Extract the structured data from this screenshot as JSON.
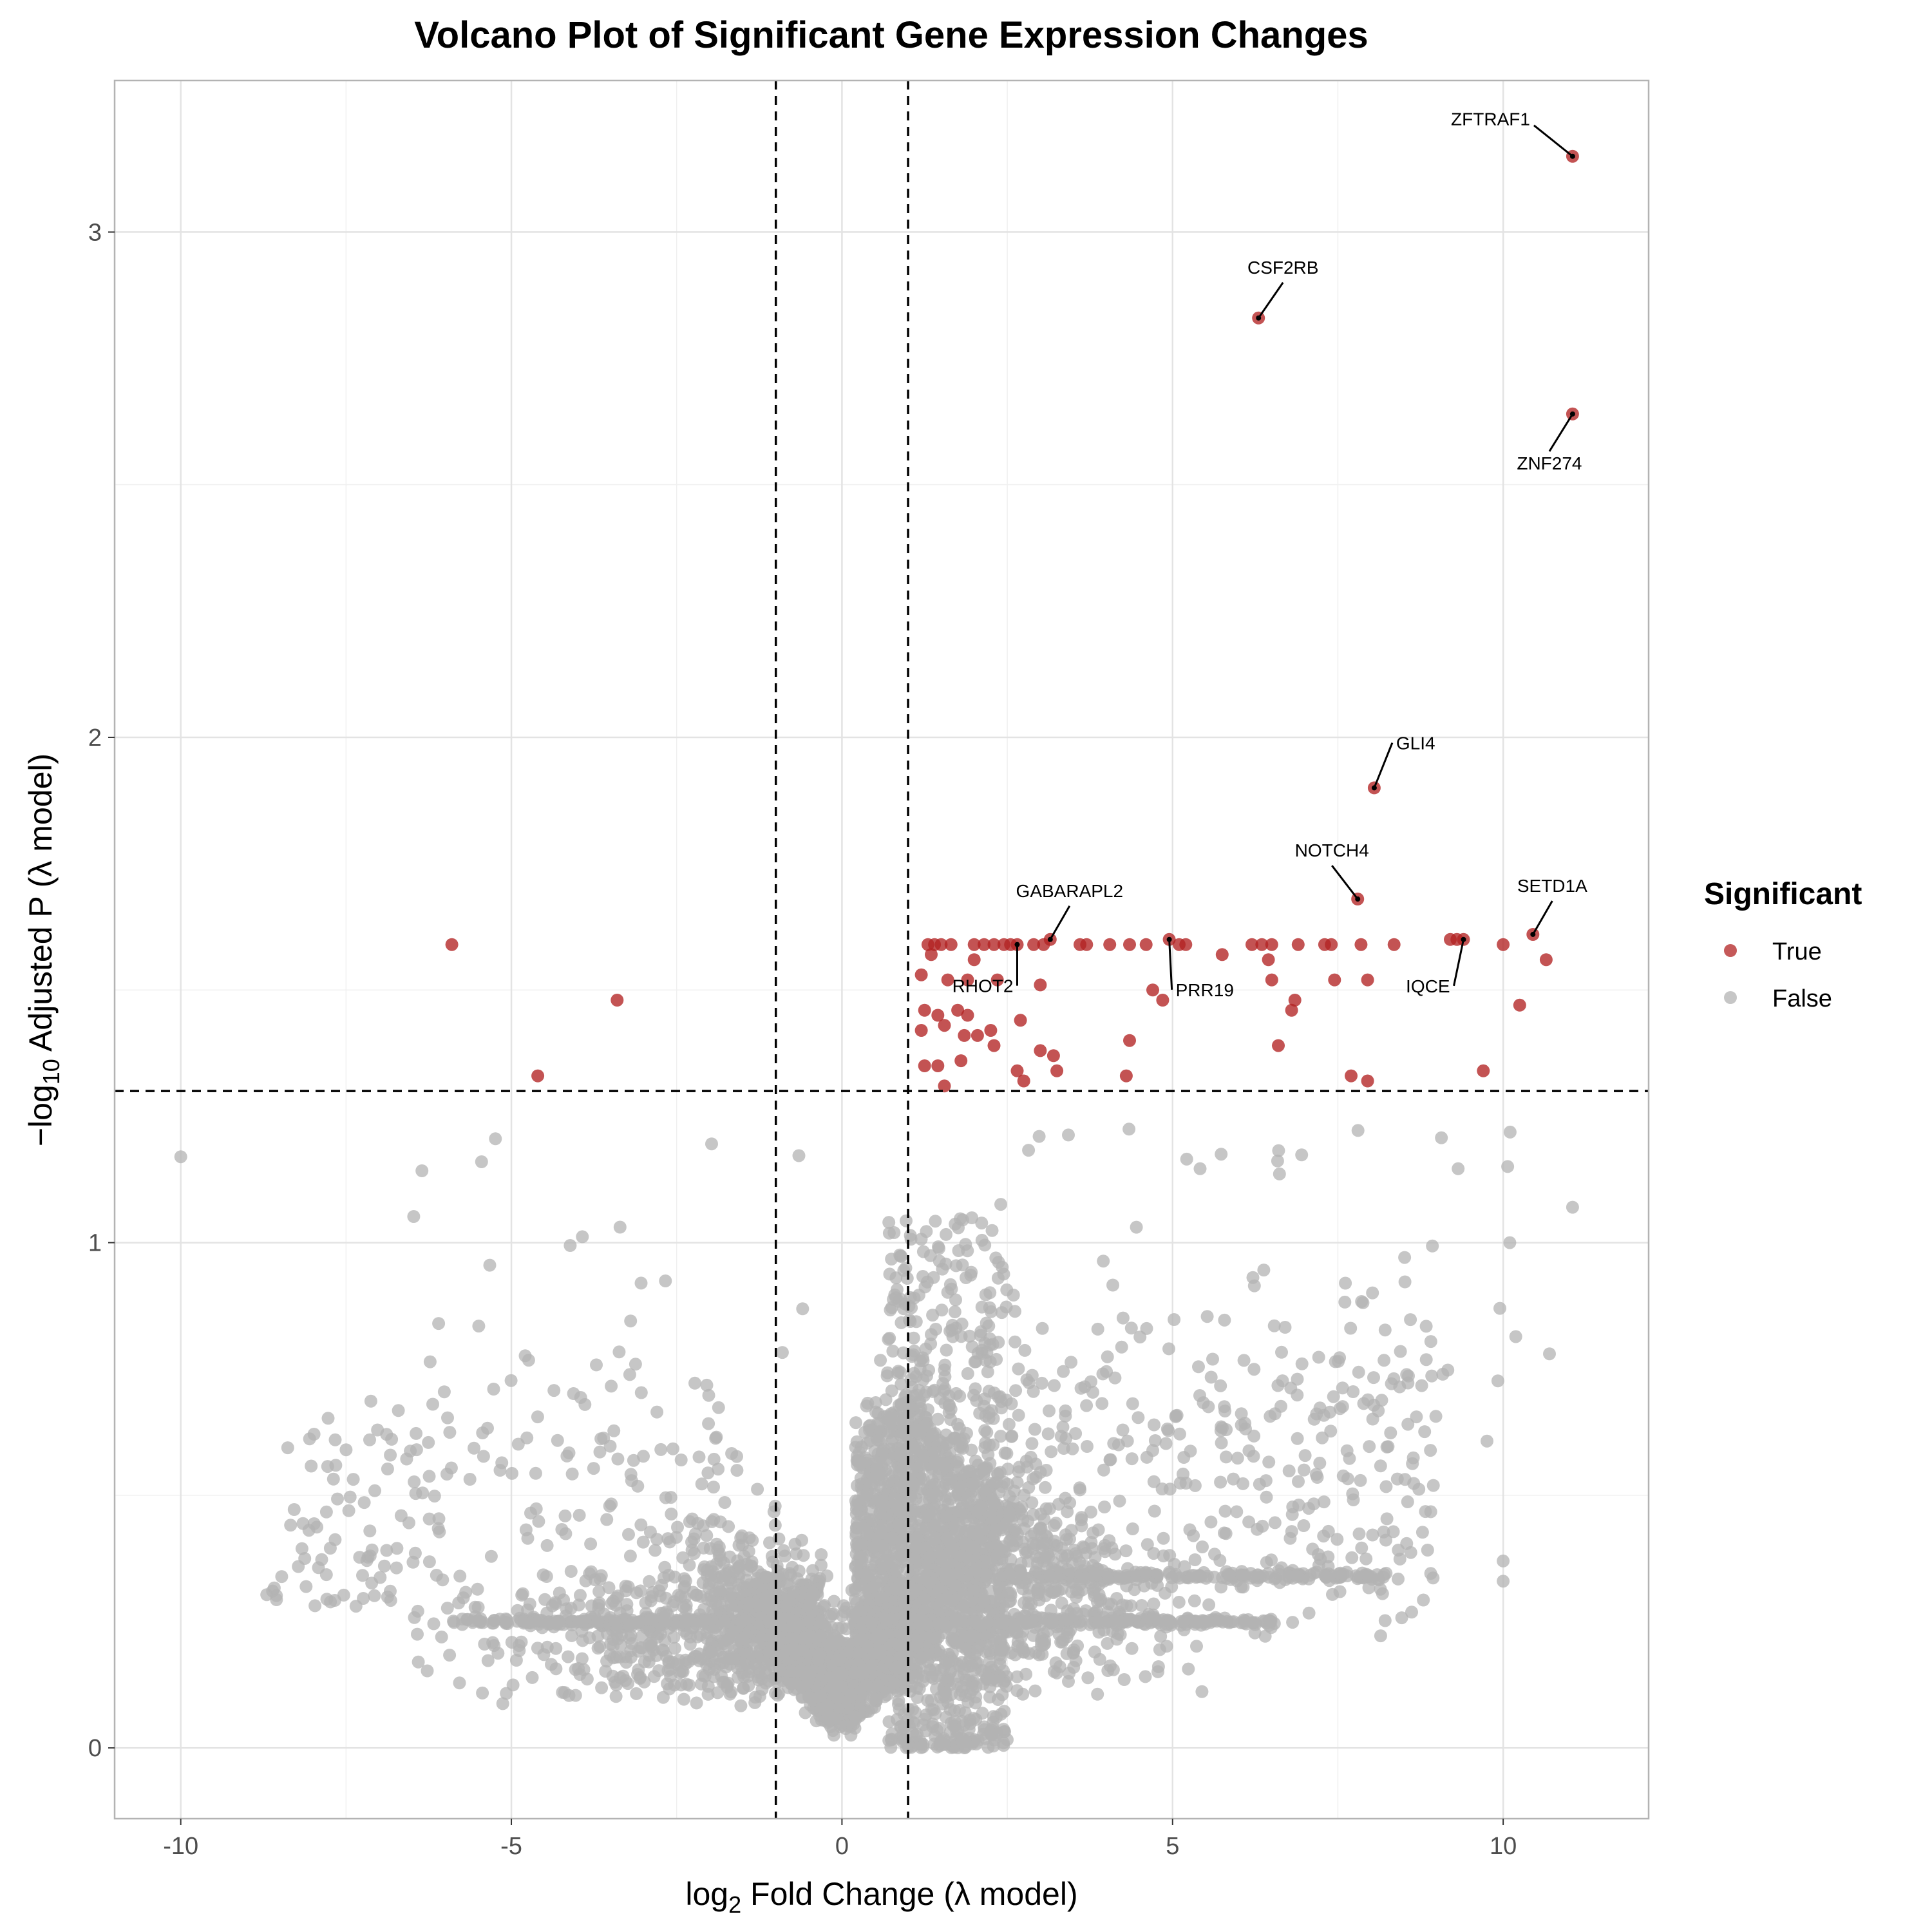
{
  "chart_data": {
    "type": "scatter",
    "title": "Volcano Plot of Significant Gene Expression Changes",
    "xlabel": {
      "pre": "log",
      "sub": "2",
      "post": " Fold Change (λ model)"
    },
    "ylabel": {
      "pre": "−log",
      "sub": "10",
      "post": " Adjusted P (λ model)"
    },
    "xlim": [
      -11,
      12.2
    ],
    "ylim": [
      -0.14,
      3.3
    ],
    "x_ticks": [
      -10,
      -5,
      0,
      5,
      10
    ],
    "y_ticks": [
      0,
      1,
      2,
      3
    ],
    "x_tick_labels": [
      "-10",
      "-5",
      "0",
      "5",
      "10"
    ],
    "y_tick_labels": [
      "0",
      "1",
      "2",
      "3"
    ],
    "thresholds": {
      "log2fc": [
        -1,
        1
      ],
      "neg_log10_padj": 1.3
    },
    "grid": true,
    "colors": {
      "significant": "#b22222",
      "not_significant": "#b3b3b3"
    },
    "legend": {
      "title": "Significant",
      "placement": "right",
      "entries": [
        {
          "label": "True",
          "color": "#b22222"
        },
        {
          "label": "False",
          "color": "#b3b3b3"
        }
      ]
    },
    "labeled_genes": [
      {
        "gene": "ZFTRAF1",
        "x": 11.05,
        "y": 3.15
      },
      {
        "gene": "CSF2RB",
        "x": 6.3,
        "y": 2.83
      },
      {
        "gene": "ZNF274",
        "x": 11.05,
        "y": 2.64
      },
      {
        "gene": "GLI4",
        "x": 8.05,
        "y": 1.9
      },
      {
        "gene": "NOTCH4",
        "x": 7.8,
        "y": 1.68
      },
      {
        "gene": "SETD1A",
        "x": 10.45,
        "y": 1.61
      },
      {
        "gene": "GABARAPL2",
        "x": 3.15,
        "y": 1.6
      },
      {
        "gene": "RHOT2",
        "x": 2.65,
        "y": 1.59
      },
      {
        "gene": "PRR19",
        "x": 4.95,
        "y": 1.6
      },
      {
        "gene": "IQCE",
        "x": 9.4,
        "y": 1.6
      }
    ],
    "significant_points": [
      [
        -5.9,
        1.59
      ],
      [
        -3.4,
        1.48
      ],
      [
        -4.6,
        1.33
      ],
      [
        1.3,
        1.59
      ],
      [
        1.4,
        1.59
      ],
      [
        1.5,
        1.59
      ],
      [
        1.65,
        1.59
      ],
      [
        2.0,
        1.59
      ],
      [
        2.15,
        1.59
      ],
      [
        2.3,
        1.59
      ],
      [
        2.45,
        1.59
      ],
      [
        2.55,
        1.59
      ],
      [
        2.9,
        1.59
      ],
      [
        3.05,
        1.59
      ],
      [
        3.6,
        1.59
      ],
      [
        3.7,
        1.59
      ],
      [
        4.05,
        1.59
      ],
      [
        4.35,
        1.59
      ],
      [
        4.6,
        1.59
      ],
      [
        5.1,
        1.59
      ],
      [
        5.2,
        1.59
      ],
      [
        6.2,
        1.59
      ],
      [
        6.35,
        1.59
      ],
      [
        6.5,
        1.59
      ],
      [
        6.9,
        1.59
      ],
      [
        7.3,
        1.59
      ],
      [
        7.4,
        1.59
      ],
      [
        7.85,
        1.59
      ],
      [
        8.35,
        1.59
      ],
      [
        9.2,
        1.6
      ],
      [
        9.3,
        1.6
      ],
      [
        10.0,
        1.59
      ],
      [
        1.35,
        1.57
      ],
      [
        2.0,
        1.56
      ],
      [
        5.75,
        1.57
      ],
      [
        6.45,
        1.56
      ],
      [
        10.65,
        1.56
      ],
      [
        1.2,
        1.53
      ],
      [
        1.6,
        1.52
      ],
      [
        1.9,
        1.52
      ],
      [
        2.35,
        1.52
      ],
      [
        6.5,
        1.52
      ],
      [
        7.45,
        1.52
      ],
      [
        7.95,
        1.52
      ],
      [
        1.25,
        1.46
      ],
      [
        1.45,
        1.45
      ],
      [
        1.75,
        1.46
      ],
      [
        1.9,
        1.45
      ],
      [
        3.0,
        1.51
      ],
      [
        4.7,
        1.5
      ],
      [
        4.85,
        1.48
      ],
      [
        6.85,
        1.48
      ],
      [
        6.8,
        1.46
      ],
      [
        10.25,
        1.47
      ],
      [
        1.2,
        1.42
      ],
      [
        1.55,
        1.43
      ],
      [
        1.85,
        1.41
      ],
      [
        2.05,
        1.41
      ],
      [
        2.25,
        1.42
      ],
      [
        2.7,
        1.44
      ],
      [
        4.35,
        1.4
      ],
      [
        6.6,
        1.39
      ],
      [
        1.25,
        1.35
      ],
      [
        1.45,
        1.35
      ],
      [
        1.8,
        1.36
      ],
      [
        2.3,
        1.39
      ],
      [
        2.65,
        1.34
      ],
      [
        3.0,
        1.38
      ],
      [
        3.2,
        1.37
      ],
      [
        3.25,
        1.34
      ],
      [
        4.3,
        1.33
      ],
      [
        9.7,
        1.34
      ],
      [
        7.7,
        1.33
      ],
      [
        7.95,
        1.32
      ],
      [
        1.55,
        1.31
      ],
      [
        2.75,
        1.32
      ]
    ]
  }
}
